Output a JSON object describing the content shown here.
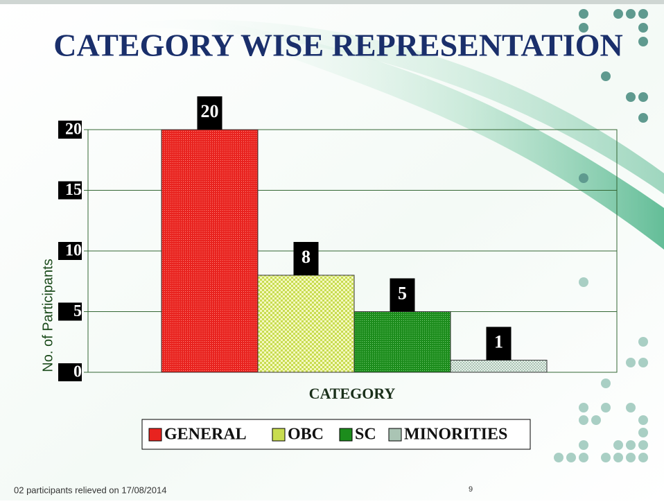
{
  "chart_data": {
    "type": "bar",
    "title": "CATEGORY WISE REPRESENTATION",
    "categories": [
      "GENERAL",
      "OBC",
      "SC",
      "MINORITIES"
    ],
    "values": [
      20,
      8,
      5,
      1
    ],
    "colors": [
      "#e8231f",
      "#c8dc50",
      "#1c8c1c",
      "#aac4b4"
    ],
    "x_label": "CATEGORY",
    "y_label": "No. of Participants",
    "ylim": [
      0,
      20
    ],
    "yticks": [
      0,
      5,
      10,
      15,
      20
    ],
    "grid": true,
    "legend": "bottom"
  },
  "footer": {
    "note": "02 participants relieved on 17/08/2014",
    "page_number": "9"
  }
}
